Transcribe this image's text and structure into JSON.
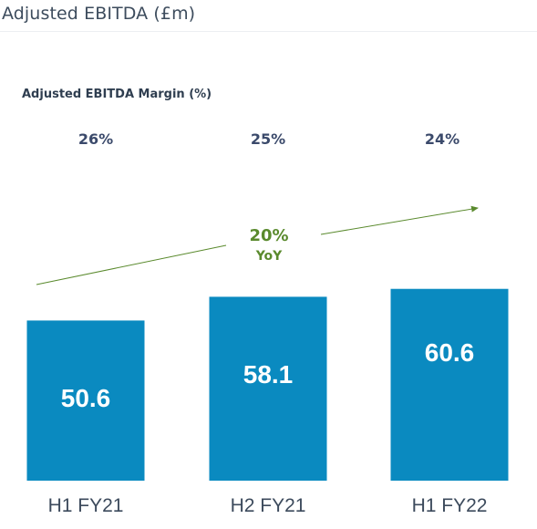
{
  "header": {
    "title": "Adjusted EBITDA (£m)"
  },
  "margin": {
    "title": "Adjusted EBITDA Margin (%)",
    "values": [
      "26%",
      "25%",
      "24%"
    ]
  },
  "growth": {
    "value": "20%",
    "suffix": "YoY",
    "color": "#5a8a2d"
  },
  "colors": {
    "bar": "#0a8ac0",
    "bar_label": "#ffffff",
    "category_label": "#3c4a5c",
    "margin_text": "#3b4a6b",
    "trend_arrow": "#5a8a2d"
  },
  "chart_data": {
    "type": "bar",
    "title": "Adjusted EBITDA (£m)",
    "categories": [
      "H1 FY21",
      "H2 FY21",
      "H1 FY22"
    ],
    "values": [
      50.6,
      58.1,
      60.6
    ],
    "value_labels": [
      "50.6",
      "58.1",
      "60.6"
    ],
    "ylim": [
      0,
      70
    ],
    "grid": false,
    "legend": "none",
    "annotations": [
      {
        "text": "20% YoY",
        "kind": "growth-arrow",
        "from": "H1 FY21",
        "to": "H1 FY22"
      }
    ]
  }
}
